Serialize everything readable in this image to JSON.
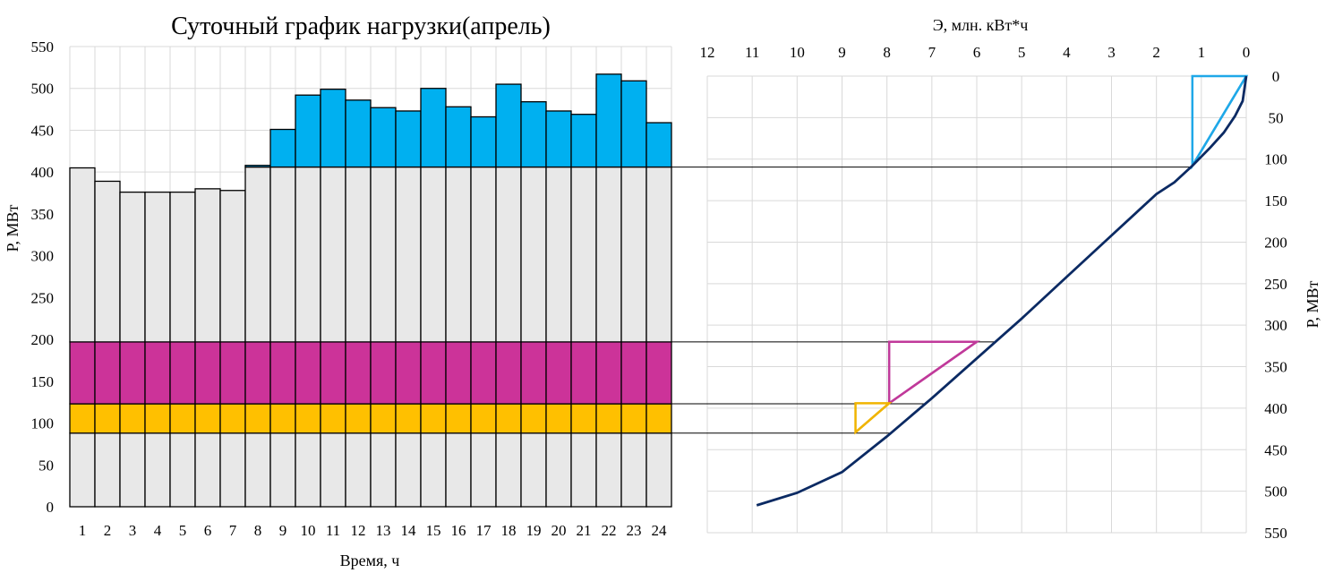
{
  "chart_data": [
    {
      "type": "bar",
      "title": "Суточный график нагрузки(апрель)",
      "xlabel": "Время, ч",
      "ylabel": "Р, МВт",
      "ylim": [
        0,
        550
      ],
      "yticks": [
        "0",
        "50",
        "100",
        "150",
        "200",
        "250",
        "300",
        "350",
        "400",
        "450",
        "500",
        "550"
      ],
      "categories": [
        "1",
        "2",
        "3",
        "4",
        "5",
        "6",
        "7",
        "8",
        "9",
        "10",
        "11",
        "12",
        "13",
        "14",
        "15",
        "16",
        "17",
        "18",
        "19",
        "20",
        "21",
        "22",
        "23",
        "24"
      ],
      "values": [
        405,
        389,
        376,
        376,
        376,
        380,
        378,
        408,
        451,
        492,
        499,
        486,
        477,
        473,
        500,
        478,
        466,
        505,
        484,
        473,
        469,
        517,
        509,
        459
      ],
      "grid": true,
      "bands": [
        {
          "name": "base",
          "from": 0,
          "to": 88,
          "color": "#e8e8e8"
        },
        {
          "name": "gold",
          "from": 88,
          "to": 123,
          "color": "#ffc000"
        },
        {
          "name": "magenta",
          "from": 123,
          "to": 197,
          "color": "#cc3399"
        },
        {
          "name": "grey",
          "from": 197,
          "to": 406,
          "color": "#e8e8e8"
        },
        {
          "name": "peak",
          "from": 406,
          "to": 550,
          "color": "#00b0f0"
        }
      ]
    },
    {
      "type": "line",
      "xlabel": "Э,  млн. кВт*ч",
      "ylabel": "Р, МВт",
      "xlim": [
        12,
        0
      ],
      "ylim": [
        0,
        550
      ],
      "y_inverted": true,
      "xticks": [
        "12",
        "11",
        "10",
        "9",
        "8",
        "7",
        "6",
        "5",
        "4",
        "3",
        "2",
        "1",
        "0"
      ],
      "yticks": [
        "0",
        "50",
        "100",
        "150",
        "200",
        "250",
        "300",
        "350",
        "400",
        "450",
        "500",
        "550"
      ],
      "grid": true,
      "curve": {
        "color": "#0b2a63",
        "x": [
          0,
          0.08,
          0.25,
          0.5,
          0.8,
          1.2,
          1.6,
          2.0,
          3.0,
          4.0,
          5.0,
          6.0,
          7.0,
          8.0,
          9.0,
          10.0,
          10.9
        ],
        "y": [
          0,
          30,
          48,
          68,
          86,
          108,
          128,
          142,
          192,
          242,
          292,
          340,
          388,
          434,
          477,
          502,
          517
        ]
      },
      "levels": [
        {
          "name": "peak",
          "color": "#1fa8e8",
          "p_top": 0,
          "p_bottom": 108,
          "e_left": 1.2,
          "e_right": 0
        },
        {
          "name": "magenta",
          "color": "#c0399a",
          "p_top": 320,
          "p_bottom": 394,
          "e_left": 7.95,
          "e_right": 6.0
        },
        {
          "name": "gold",
          "color": "#f0b400",
          "p_top": 394,
          "p_bottom": 429,
          "e_left": 8.7,
          "e_right": 7.95
        }
      ]
    }
  ]
}
